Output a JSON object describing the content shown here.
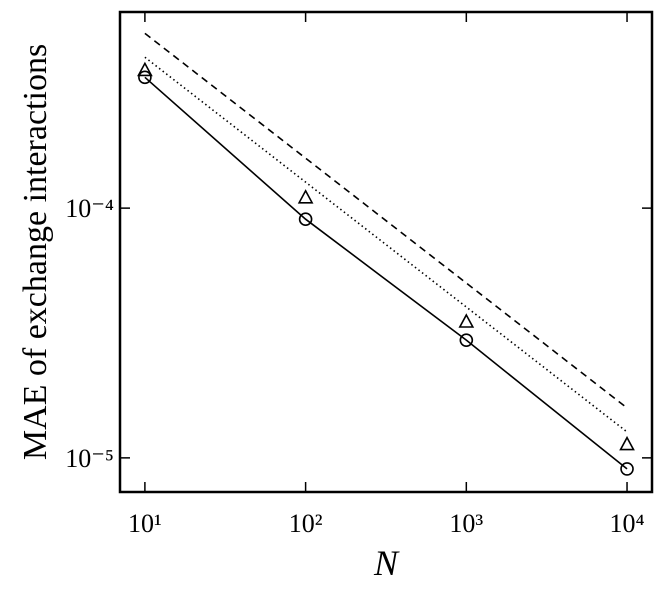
{
  "chart_data": {
    "type": "line",
    "xlabel": "N",
    "ylabel": "MAE of exchange interactions",
    "xscale": "log",
    "yscale": "log",
    "xlim": [
      7,
      14300
    ],
    "ylim": [
      7.3e-06,
      0.00061
    ],
    "xticks": [
      {
        "value": 10,
        "label": "10¹"
      },
      {
        "value": 100,
        "label": "10²"
      },
      {
        "value": 1000,
        "label": "10³"
      },
      {
        "value": 10000,
        "label": "10⁴"
      }
    ],
    "yticks": [
      {
        "value": 0.0001,
        "label": "10⁻⁴"
      },
      {
        "value": 1e-05,
        "label": "10⁻⁵"
      }
    ],
    "color": "#000000",
    "series": [
      {
        "marker": "circle",
        "line": "solid",
        "x": [
          10,
          100,
          1000,
          10000
        ],
        "values": [
          0.000334,
          9.03e-05,
          2.96e-05,
          9.03e-06
        ]
      },
      {
        "marker": "triangle",
        "x": [
          10,
          100,
          1000,
          10000
        ],
        "values": [
          0.000356,
          0.00011,
          3.5e-05,
          1.13e-05
        ]
      },
      {
        "line": "dotted",
        "x": [
          10,
          10000
        ],
        "values": [
          0.000402,
          1.27e-05
        ]
      },
      {
        "line": "dashed",
        "x": [
          10,
          10000
        ],
        "values": [
          0.000501,
          1.585e-05
        ]
      }
    ]
  }
}
